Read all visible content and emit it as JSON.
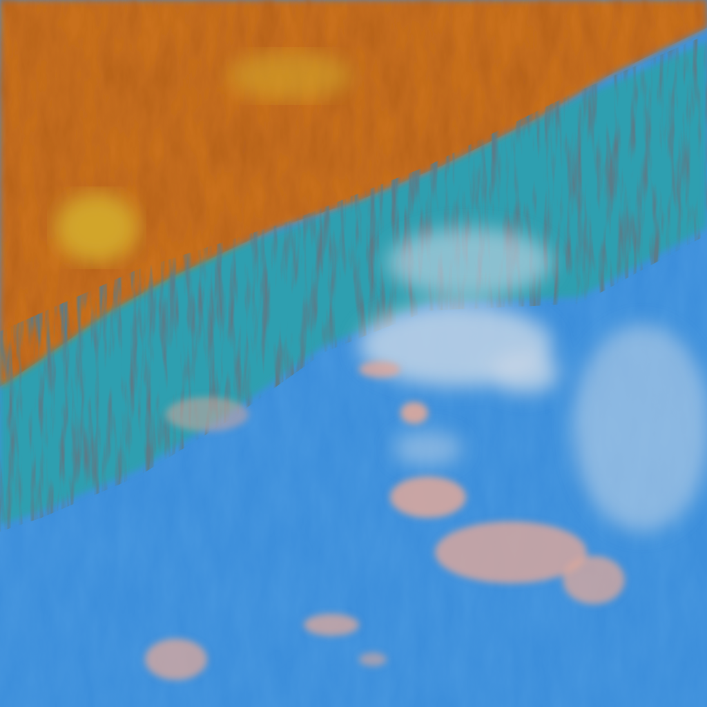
{
  "colors": {
    "ocean": "#3d8fdb",
    "ocean_light": "#5aa6e6",
    "land": "#c9701f",
    "land_dark": "#a4541a",
    "land_yellow": "#d2a52a",
    "ridge_teal": "#2f9fb0",
    "ridge_dark": "#1c3a4a",
    "cloud": "#c9d7e6",
    "pink_cloud": "#e0a89a"
  }
}
